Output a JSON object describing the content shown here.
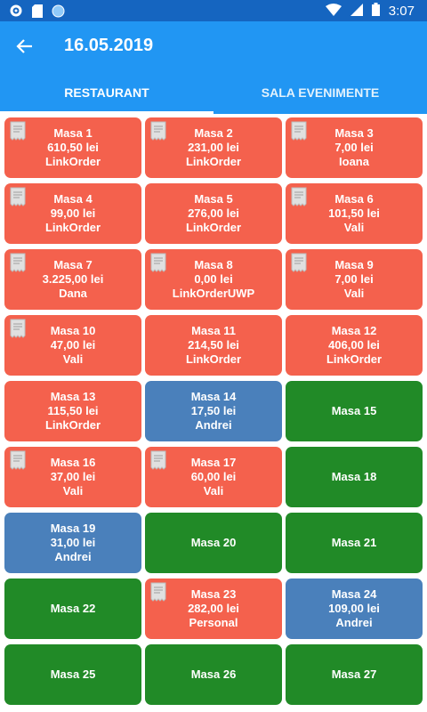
{
  "status_bar": {
    "time": "3:07"
  },
  "header": {
    "title": "16.05.2019"
  },
  "tabs": [
    {
      "label": "RESTAURANT",
      "active": true
    },
    {
      "label": "SALA EVENIMENTE",
      "active": false
    }
  ],
  "colors": {
    "red": "#f4614d",
    "green": "#218a27",
    "blue": "#4a80bb",
    "appbar": "#2196f3"
  },
  "tables": [
    {
      "name": "Masa 1",
      "amount": "610,50 lei",
      "user": "LinkOrder",
      "status": "red",
      "receipt": true
    },
    {
      "name": "Masa 2",
      "amount": "231,00 lei",
      "user": "LinkOrder",
      "status": "red",
      "receipt": true
    },
    {
      "name": "Masa 3",
      "amount": "7,00 lei",
      "user": "Ioana",
      "status": "red",
      "receipt": true
    },
    {
      "name": "Masa 4",
      "amount": "99,00 lei",
      "user": "LinkOrder",
      "status": "red",
      "receipt": true
    },
    {
      "name": "Masa 5",
      "amount": "276,00 lei",
      "user": "LinkOrder",
      "status": "red",
      "receipt": false
    },
    {
      "name": "Masa 6",
      "amount": "101,50 lei",
      "user": "Vali",
      "status": "red",
      "receipt": true
    },
    {
      "name": "Masa 7",
      "amount": "3.225,00 lei",
      "user": "Dana",
      "status": "red",
      "receipt": true
    },
    {
      "name": "Masa 8",
      "amount": "0,00 lei",
      "user": "LinkOrderUWP",
      "status": "red",
      "receipt": true
    },
    {
      "name": "Masa 9",
      "amount": "7,00 lei",
      "user": "Vali",
      "status": "red",
      "receipt": true
    },
    {
      "name": "Masa 10",
      "amount": "47,00 lei",
      "user": "Vali",
      "status": "red",
      "receipt": true
    },
    {
      "name": "Masa 11",
      "amount": "214,50 lei",
      "user": "LinkOrder",
      "status": "red",
      "receipt": false
    },
    {
      "name": "Masa 12",
      "amount": "406,00 lei",
      "user": "LinkOrder",
      "status": "red",
      "receipt": false
    },
    {
      "name": "Masa 13",
      "amount": "115,50 lei",
      "user": "LinkOrder",
      "status": "red",
      "receipt": false
    },
    {
      "name": "Masa 14",
      "amount": "17,50 lei",
      "user": "Andrei",
      "status": "blue",
      "receipt": false
    },
    {
      "name": "Masa 15",
      "amount": "",
      "user": "",
      "status": "green",
      "receipt": false
    },
    {
      "name": "Masa 16",
      "amount": "37,00 lei",
      "user": "Vali",
      "status": "red",
      "receipt": true
    },
    {
      "name": "Masa 17",
      "amount": "60,00 lei",
      "user": "Vali",
      "status": "red",
      "receipt": true
    },
    {
      "name": "Masa 18",
      "amount": "",
      "user": "",
      "status": "green",
      "receipt": false
    },
    {
      "name": "Masa 19",
      "amount": "31,00 lei",
      "user": "Andrei",
      "status": "blue",
      "receipt": false
    },
    {
      "name": "Masa 20",
      "amount": "",
      "user": "",
      "status": "green",
      "receipt": false
    },
    {
      "name": "Masa 21",
      "amount": "",
      "user": "",
      "status": "green",
      "receipt": false
    },
    {
      "name": "Masa 22",
      "amount": "",
      "user": "",
      "status": "green",
      "receipt": false
    },
    {
      "name": "Masa 23",
      "amount": "282,00 lei",
      "user": "Personal",
      "status": "red",
      "receipt": true
    },
    {
      "name": "Masa 24",
      "amount": "109,00 lei",
      "user": "Andrei",
      "status": "blue",
      "receipt": false
    },
    {
      "name": "Masa 25",
      "amount": "",
      "user": "",
      "status": "green",
      "receipt": false
    },
    {
      "name": "Masa 26",
      "amount": "",
      "user": "",
      "status": "green",
      "receipt": false
    },
    {
      "name": "Masa 27",
      "amount": "",
      "user": "",
      "status": "green",
      "receipt": false
    }
  ]
}
